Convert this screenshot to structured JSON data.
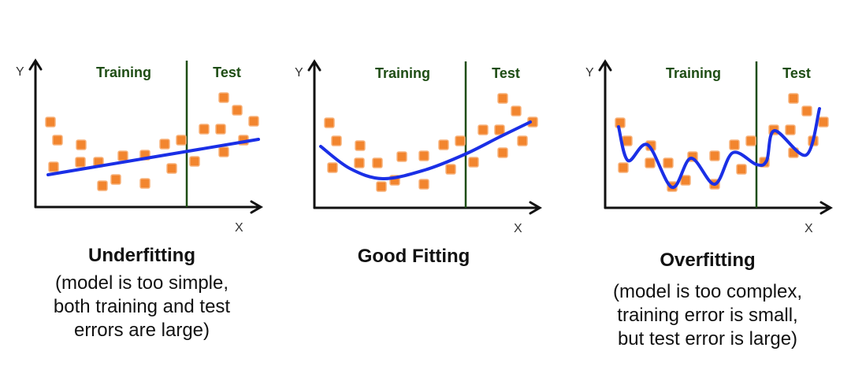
{
  "colors": {
    "point": "#f2852e",
    "fit": "#1a2fe6",
    "divider": "#1e4d14",
    "axis": "#111111",
    "region_label": "#1e4d14"
  },
  "chart_data": [
    {
      "type": "scatter",
      "title": "Underfitting",
      "subtitle_lines": [
        "(model is too simple,",
        "both training and test",
        "errors are large)"
      ],
      "xlabel": "X",
      "ylabel": "Y",
      "region_labels": [
        "Training",
        "Test"
      ],
      "split_x": 192,
      "fit": "linear",
      "fit_points": [
        [
          16,
          41
        ],
        [
          283,
          86
        ]
      ]
    },
    {
      "type": "scatter",
      "title": "Good Fitting",
      "subtitle_lines": [],
      "xlabel": "X",
      "ylabel": "Y",
      "region_labels": [
        "Training",
        "Test"
      ],
      "split_x": 192,
      "fit": "quadratic",
      "fit_points": [
        [
          8,
          78
        ],
        [
          45,
          50
        ],
        [
          87,
          37
        ],
        [
          140,
          48
        ],
        [
          191,
          68
        ],
        [
          235,
          90
        ],
        [
          274,
          109
        ]
      ]
    },
    {
      "type": "scatter",
      "title": "Overfitting",
      "subtitle_lines": [
        "(model is too complex,",
        "training error is small,",
        "but test error is large)"
      ],
      "xlabel": "X",
      "ylabel": "Y",
      "region_labels": [
        "Training",
        "Test"
      ],
      "split_x": 192,
      "fit": "high-degree polynomial",
      "fit_points": [
        [
          17,
          103
        ],
        [
          29,
          60
        ],
        [
          54,
          80
        ],
        [
          85,
          26
        ],
        [
          109,
          63
        ],
        [
          139,
          30
        ],
        [
          162,
          70
        ],
        [
          192,
          55
        ],
        [
          205,
          60
        ],
        [
          215,
          98
        ],
        [
          255,
          67
        ],
        [
          272,
          126
        ]
      ]
    }
  ],
  "points": [
    [
      19,
      108
    ],
    [
      28,
      85
    ],
    [
      23,
      51
    ],
    [
      58,
      79
    ],
    [
      57,
      57
    ],
    [
      80,
      57
    ],
    [
      85,
      27
    ],
    [
      102,
      35
    ],
    [
      111,
      65
    ],
    [
      139,
      66
    ],
    [
      139,
      30
    ],
    [
      164,
      80
    ],
    [
      173,
      49
    ],
    [
      185,
      85
    ],
    [
      202,
      58
    ],
    [
      214,
      99
    ],
    [
      235,
      99
    ],
    [
      239,
      139
    ],
    [
      239,
      70
    ],
    [
      256,
      123
    ],
    [
      264,
      85
    ],
    [
      277,
      109
    ]
  ]
}
